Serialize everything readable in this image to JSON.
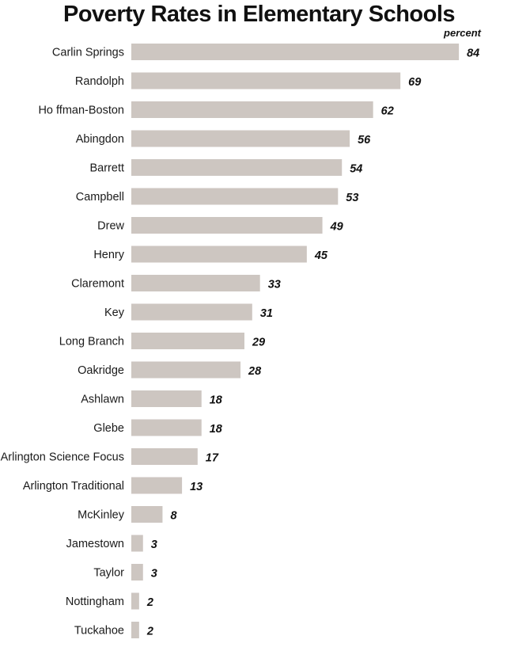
{
  "chart_data": {
    "type": "bar",
    "orientation": "horizontal",
    "title": "Poverty Rates in Elementary Schools",
    "unit_label": "percent",
    "categories": [
      "Carlin Springs",
      "Randolph",
      "Ho ffman-Boston",
      "Abingdon",
      "Barrett",
      "Campbell",
      "Drew",
      "Henry",
      "Claremont",
      "Key",
      "Long Branch",
      "Oakridge",
      "Ashlawn",
      "Glebe",
      "Arlington Science Focus",
      "Arlington  Traditional",
      "McKinley",
      "Jamestown",
      "Taylor",
      "Nottingham",
      "Tuckahoe"
    ],
    "values": [
      84,
      69,
      62,
      56,
      54,
      53,
      49,
      45,
      33,
      31,
      29,
      28,
      18,
      18,
      17,
      13,
      8,
      3,
      3,
      2,
      2
    ],
    "bar_color": "#cdc6c1",
    "grid": false
  }
}
